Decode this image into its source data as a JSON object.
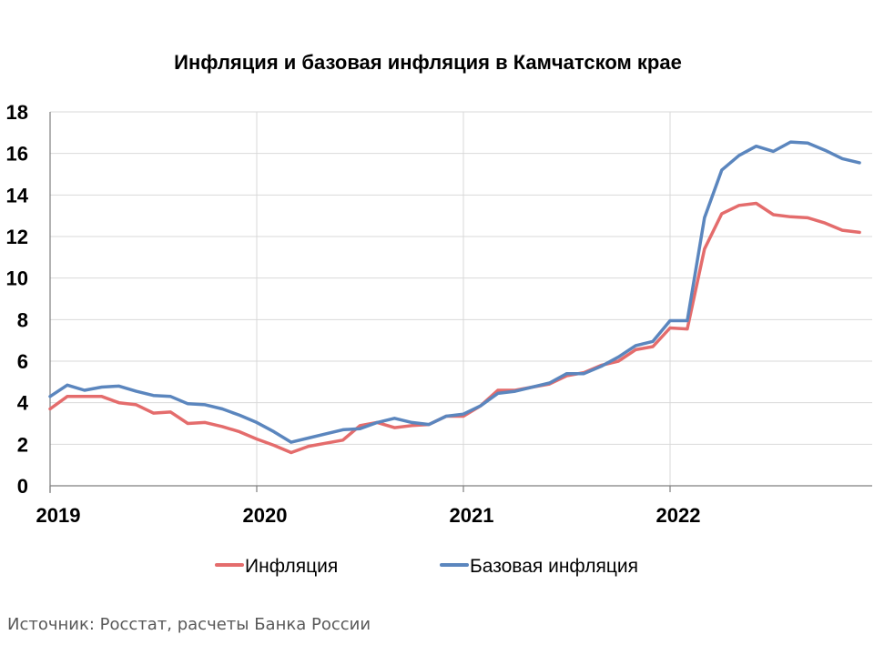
{
  "chart_data": {
    "type": "line",
    "title": "Инфляция и базовая инфляция в Камчатском крае",
    "xlabel": "",
    "ylabel": "",
    "ylim": [
      0,
      18
    ],
    "y_ticks": [
      "0",
      "2",
      "4",
      "6",
      "8",
      "10",
      "12",
      "14",
      "16",
      "18"
    ],
    "x_ticks": [
      "2019",
      "2020",
      "2021",
      "2022"
    ],
    "x_start": "2019-01",
    "x_end": "2022-12",
    "grid": true,
    "legend_position": "bottom",
    "series": [
      {
        "name": "Инфляция",
        "color": "#E46C6C",
        "values": [
          3.7,
          4.3,
          4.3,
          4.3,
          4.0,
          3.9,
          3.5,
          3.55,
          3.0,
          3.05,
          2.85,
          2.6,
          2.25,
          1.95,
          1.6,
          1.9,
          2.05,
          2.2,
          2.9,
          3.05,
          2.8,
          2.9,
          2.95,
          3.35,
          3.35,
          3.85,
          4.6,
          4.6,
          4.75,
          4.9,
          5.3,
          5.45,
          5.8,
          6.0,
          6.55,
          6.7,
          7.6,
          7.55,
          11.4,
          13.1,
          13.5,
          13.6,
          13.05,
          12.95,
          12.9,
          12.65,
          12.3,
          12.2
        ]
      },
      {
        "name": "Базовая инфляция",
        "color": "#5B86BE",
        "values": [
          4.3,
          4.85,
          4.6,
          4.75,
          4.8,
          4.55,
          4.35,
          4.3,
          3.95,
          3.9,
          3.7,
          3.4,
          3.05,
          2.6,
          2.1,
          2.3,
          2.5,
          2.7,
          2.75,
          3.05,
          3.25,
          3.05,
          2.95,
          3.35,
          3.45,
          3.85,
          4.45,
          4.55,
          4.75,
          4.95,
          5.4,
          5.4,
          5.75,
          6.2,
          6.75,
          6.95,
          7.95,
          7.95,
          12.9,
          15.2,
          15.9,
          16.35,
          16.1,
          16.55,
          16.5,
          16.15,
          15.75,
          15.55
        ]
      }
    ]
  },
  "source": "Источник: Росстат, расчеты Банка России"
}
